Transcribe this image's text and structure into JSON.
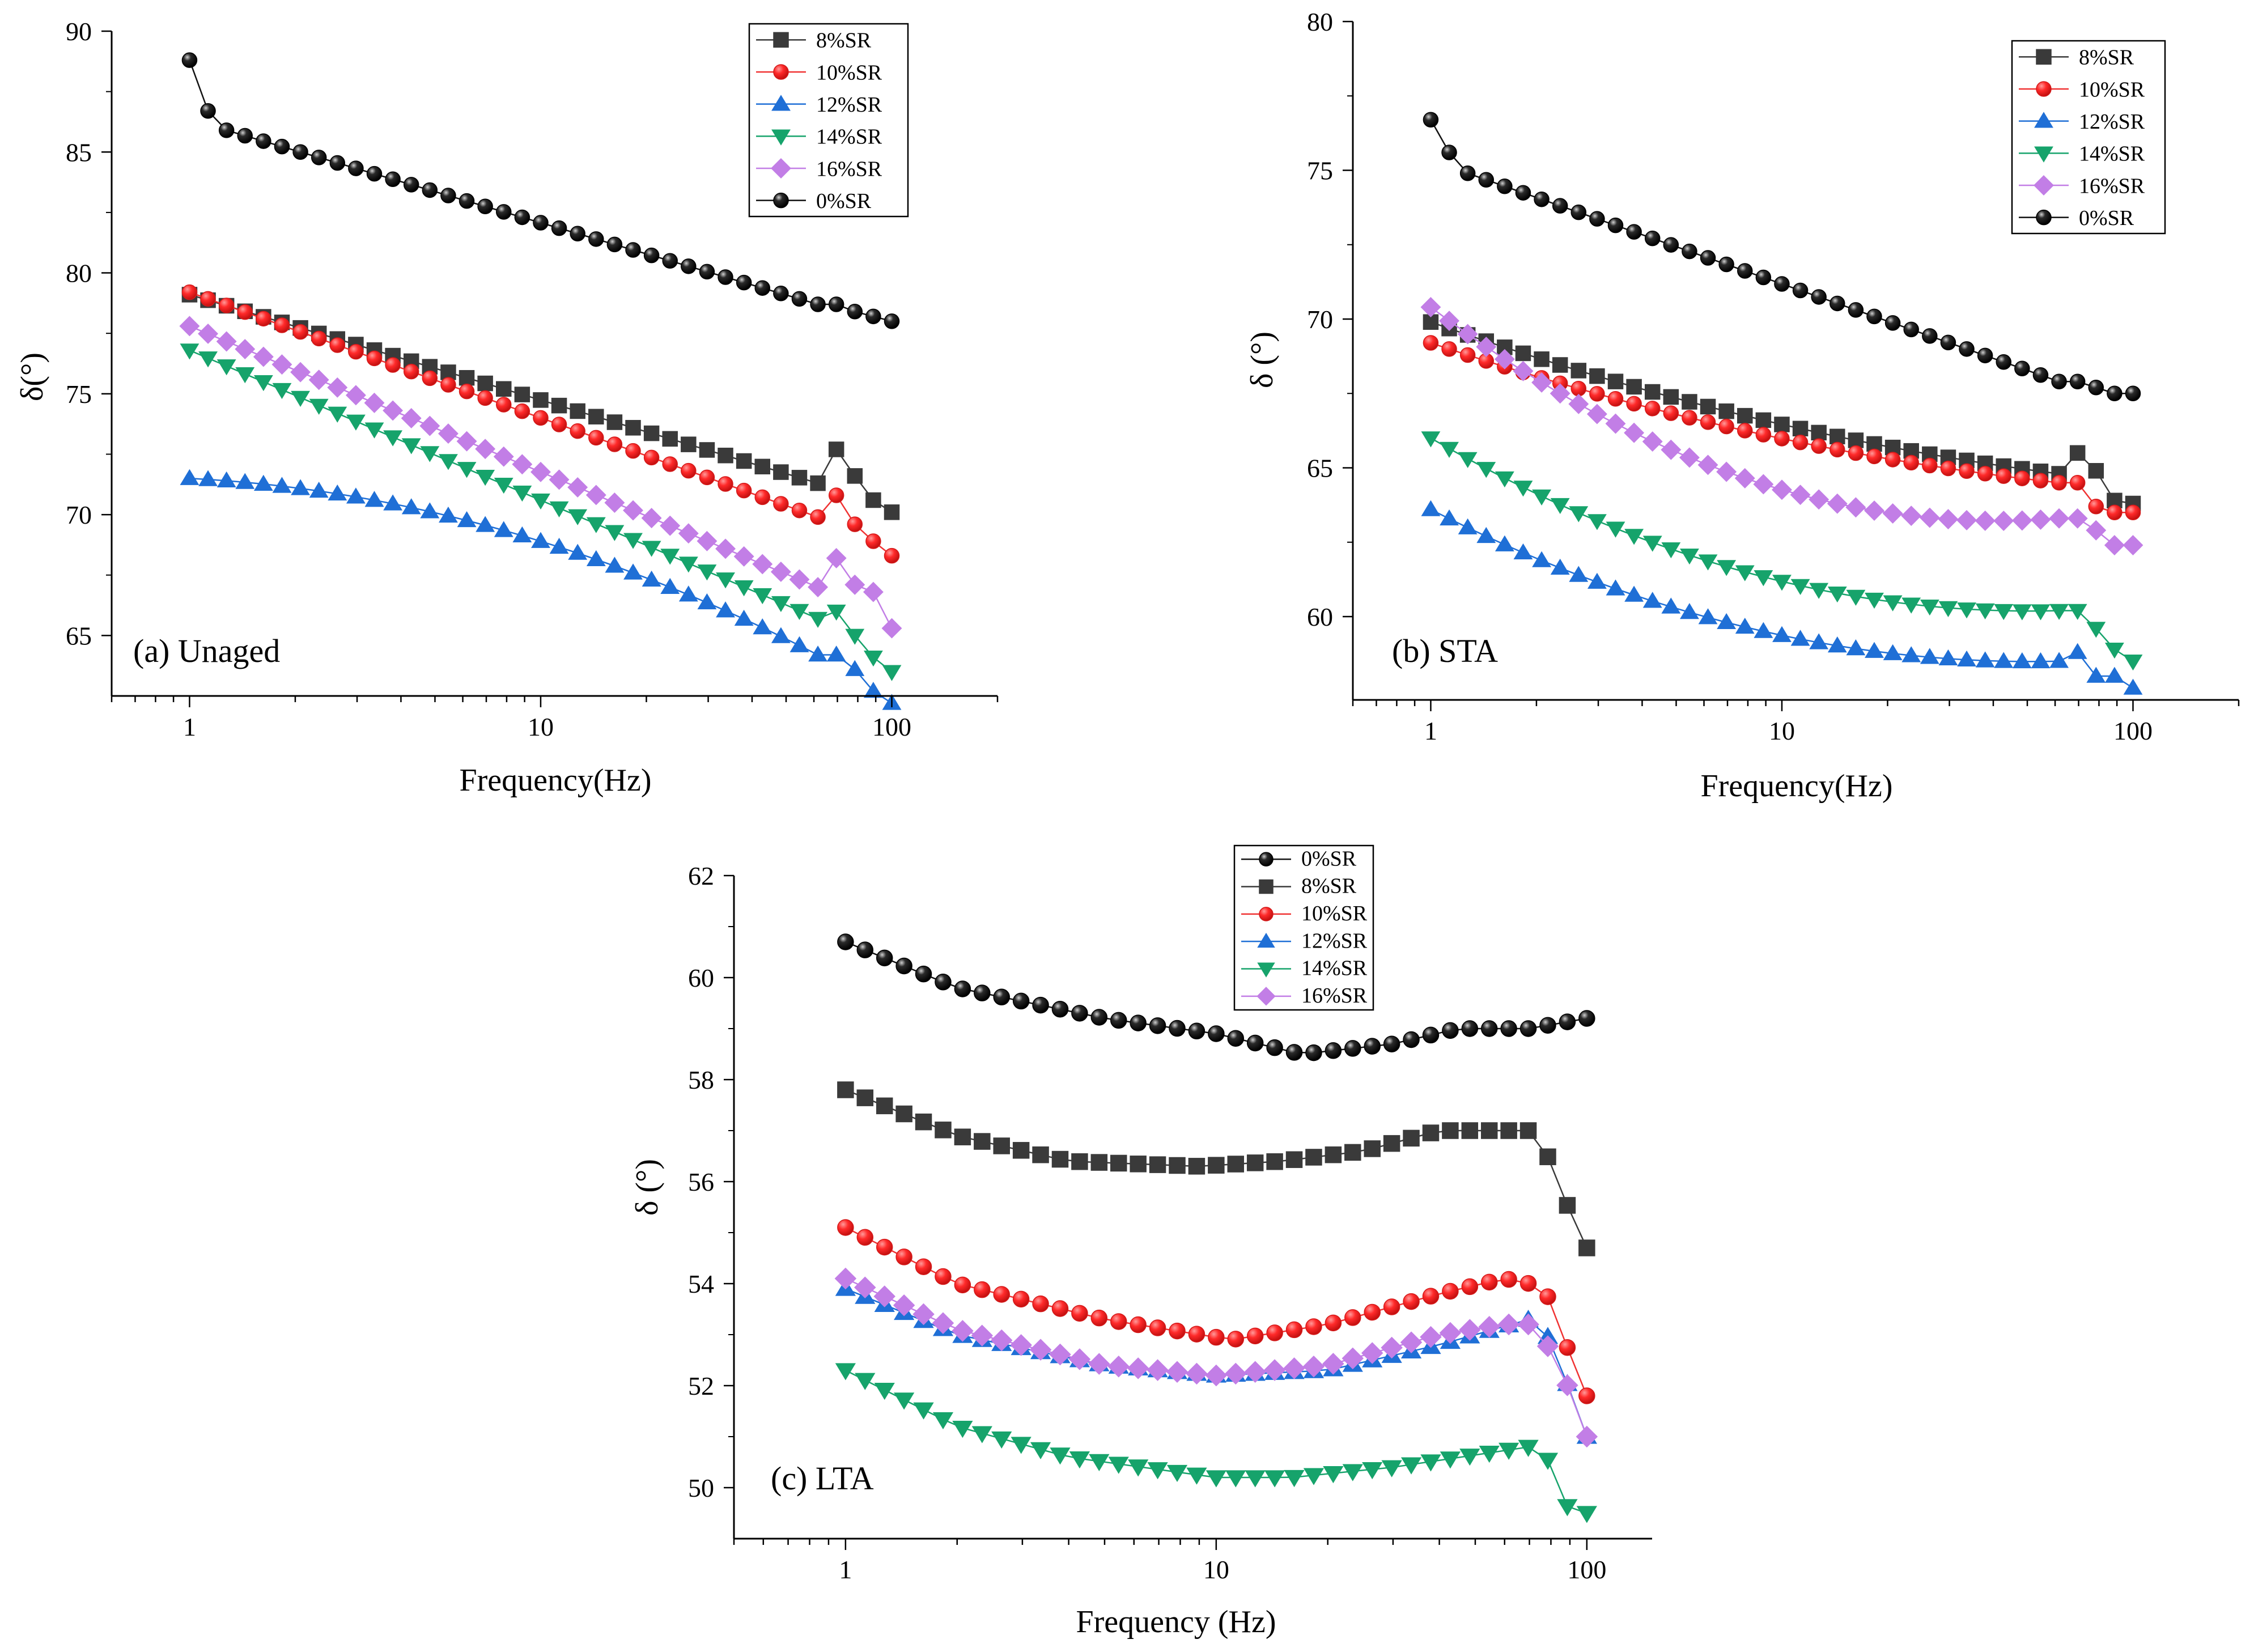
{
  "figure": {
    "panels": [
      "Unaged",
      "STA",
      "LTA"
    ]
  },
  "chart_data": [
    {
      "type": "line",
      "panel_label": "(a) Unaged",
      "title": "",
      "xlabel": "Frequency(Hz)",
      "ylabel": "δ(°)",
      "xscale": "log",
      "xlim": [
        0.6,
        200
      ],
      "ylim": [
        62.5,
        90
      ],
      "x_ticks": [
        1,
        10,
        100
      ],
      "x_tick_labels": [
        "1",
        "10",
        "100"
      ],
      "y_ticks": [
        65,
        70,
        75,
        80,
        85,
        90
      ],
      "y_tick_labels": [
        "65",
        "70",
        "75",
        "80",
        "85",
        "90"
      ],
      "grid": false,
      "legend_position": "top-right",
      "anomaly_index": 35,
      "series": [
        {
          "name": "8%SR",
          "marker": "square",
          "color": "#3a3a3a",
          "start": 79.1,
          "end_trend": 71.3,
          "shape": 0,
          "anomaly": 1.4,
          "last": [
            71.6,
            70.6,
            70.1
          ]
        },
        {
          "name": "10%SR",
          "marker": "circle",
          "color": "#f03232",
          "start": 79.2,
          "end_trend": 69.9,
          "shape": 0,
          "anomaly": 0.9,
          "last": [
            69.6,
            68.9,
            68.3
          ]
        },
        {
          "name": "12%SR",
          "marker": "triangle-up",
          "color": "#1f6fd6",
          "start": 71.5,
          "end_trend": 64.2,
          "shape": -1.5,
          "anomaly": 0,
          "last": [
            63.6,
            62.7,
            62.2
          ]
        },
        {
          "name": "14%SR",
          "marker": "triangle-down",
          "color": "#16a36b",
          "start": 76.8,
          "end_trend": 65.7,
          "shape": 0,
          "anomaly": 0.3,
          "last": [
            65.0,
            64.1,
            63.5
          ]
        },
        {
          "name": "16%SR",
          "marker": "diamond",
          "color": "#c27ee6",
          "start": 77.8,
          "end_trend": 67.0,
          "shape": 0,
          "anomaly": 1.2,
          "last": [
            67.1,
            66.8,
            65.3
          ]
        },
        {
          "name": "0%SR",
          "marker": "sphere",
          "color": "#111111",
          "start": 88.8,
          "end_trend": 78.7,
          "shape": 0,
          "anomaly": 0,
          "last": [
            78.4,
            78.2,
            78.0
          ],
          "head": [
            86.7,
            85.9
          ]
        }
      ]
    },
    {
      "type": "line",
      "panel_label": "(b) STA",
      "title": "",
      "xlabel": "Frequency(Hz)",
      "ylabel": "δ (°)",
      "xscale": "log",
      "xlim": [
        0.6,
        200
      ],
      "ylim": [
        57.2,
        80
      ],
      "x_ticks": [
        1,
        10,
        100
      ],
      "x_tick_labels": [
        "1",
        "10",
        "100"
      ],
      "y_ticks": [
        60,
        65,
        70,
        75,
        80
      ],
      "y_tick_labels": [
        "60",
        "65",
        "70",
        "75",
        "80"
      ],
      "grid": false,
      "legend_position": "top-right",
      "anomaly_index": 35,
      "series": [
        {
          "name": "8%SR",
          "marker": "square",
          "color": "#3a3a3a",
          "start": 69.9,
          "end_trend": 64.8,
          "shape": 0.6,
          "anomaly": 0.7,
          "last": [
            64.9,
            63.9,
            63.8
          ]
        },
        {
          "name": "10%SR",
          "marker": "circle",
          "color": "#f03232",
          "start": 69.2,
          "end_trend": 64.5,
          "shape": 0.6,
          "anomaly": 0,
          "last": [
            63.7,
            63.5,
            63.5
          ]
        },
        {
          "name": "12%SR",
          "marker": "triangle-up",
          "color": "#1f6fd6",
          "start": 63.6,
          "end_trend": 58.5,
          "shape": 1.4,
          "anomaly": 0.3,
          "last": [
            58.0,
            58.0,
            57.6
          ]
        },
        {
          "name": "14%SR",
          "marker": "triangle-down",
          "color": "#16a36b",
          "start": 66.0,
          "end_trend": 60.2,
          "shape": 1.6,
          "anomaly": 0,
          "last": [
            59.6,
            58.9,
            58.5
          ]
        },
        {
          "name": "16%SR",
          "marker": "diamond",
          "color": "#c27ee6",
          "start": 70.4,
          "end_trend": 63.3,
          "shape": 2.2,
          "anomaly": 0,
          "last": [
            62.9,
            62.4,
            62.4
          ]
        },
        {
          "name": "0%SR",
          "marker": "sphere",
          "color": "#111111",
          "start": 76.7,
          "end_trend": 67.9,
          "shape": 0,
          "anomaly": 0,
          "last": [
            67.7,
            67.5,
            67.5
          ],
          "head": [
            75.6,
            74.9
          ]
        }
      ]
    },
    {
      "type": "line",
      "panel_label": "(c) LTA",
      "title": "",
      "xlabel": "Frequency (Hz)",
      "ylabel": "δ (°)",
      "xscale": "log",
      "xlim": [
        0.5,
        150
      ],
      "ylim": [
        49,
        62
      ],
      "x_ticks": [
        1,
        10,
        100
      ],
      "x_tick_labels": [
        "1",
        "10",
        "100"
      ],
      "y_ticks": [
        50,
        52,
        54,
        56,
        58,
        60,
        62
      ],
      "y_tick_labels": [
        "50",
        "52",
        "54",
        "56",
        "58",
        "60",
        "62"
      ],
      "grid": false,
      "legend_position": "top-center",
      "series": [
        {
          "name": "0%SR",
          "marker": "sphere",
          "color": "#111111",
          "anchors": [
            [
              1,
              60.7
            ],
            [
              2,
              59.8
            ],
            [
              5,
              59.2
            ],
            [
              10,
              58.9
            ],
            [
              17,
              58.5
            ],
            [
              30,
              58.7
            ],
            [
              45,
              59.0
            ],
            [
              70,
              59.0
            ],
            [
              100,
              59.2
            ]
          ]
        },
        {
          "name": "8%SR",
          "marker": "square",
          "color": "#3a3a3a",
          "anchors": [
            [
              1,
              57.8
            ],
            [
              2,
              56.9
            ],
            [
              4,
              56.4
            ],
            [
              9,
              56.3
            ],
            [
              15,
              56.4
            ],
            [
              25,
              56.6
            ],
            [
              40,
              57.0
            ],
            [
              70,
              57.0
            ],
            [
              80,
              56.4
            ],
            [
              90,
              55.4
            ],
            [
              100,
              54.7
            ]
          ]
        },
        {
          "name": "10%SR",
          "marker": "circle",
          "color": "#f03232",
          "anchors": [
            [
              1,
              55.1
            ],
            [
              2,
              54.0
            ],
            [
              5,
              53.3
            ],
            [
              11,
              52.9
            ],
            [
              20,
              53.2
            ],
            [
              40,
              53.8
            ],
            [
              60,
              54.1
            ],
            [
              70,
              54.0
            ],
            [
              80,
              53.7
            ],
            [
              90,
              52.6
            ],
            [
              100,
              51.8
            ]
          ]
        },
        {
          "name": "12%SR",
          "marker": "triangle-up",
          "color": "#1f6fd6",
          "anchors": [
            [
              1,
              53.9
            ],
            [
              2,
              53.0
            ],
            [
              5,
              52.4
            ],
            [
              10,
              52.2
            ],
            [
              20,
              52.3
            ],
            [
              40,
              52.8
            ],
            [
              70,
              53.3
            ],
            [
              80,
              52.9
            ],
            [
              90,
              51.9
            ],
            [
              100,
              51.0
            ]
          ]
        },
        {
          "name": "14%SR",
          "marker": "triangle-down",
          "color": "#16a36b",
          "anchors": [
            [
              1,
              52.3
            ],
            [
              2,
              51.2
            ],
            [
              4,
              50.6
            ],
            [
              10,
              50.2
            ],
            [
              16,
              50.2
            ],
            [
              30,
              50.4
            ],
            [
              70,
              50.8
            ],
            [
              80,
              50.5
            ],
            [
              90,
              49.5
            ],
            [
              100,
              49.5
            ]
          ]
        },
        {
          "name": "16%SR",
          "marker": "diamond",
          "color": "#c27ee6",
          "anchors": [
            [
              1,
              54.1
            ],
            [
              2,
              53.1
            ],
            [
              5,
              52.4
            ],
            [
              10,
              52.2
            ],
            [
              20,
              52.4
            ],
            [
              40,
              53.0
            ],
            [
              60,
              53.2
            ],
            [
              70,
              53.2
            ],
            [
              80,
              52.7
            ],
            [
              90,
              51.9
            ],
            [
              100,
              51.0
            ]
          ]
        }
      ]
    }
  ]
}
